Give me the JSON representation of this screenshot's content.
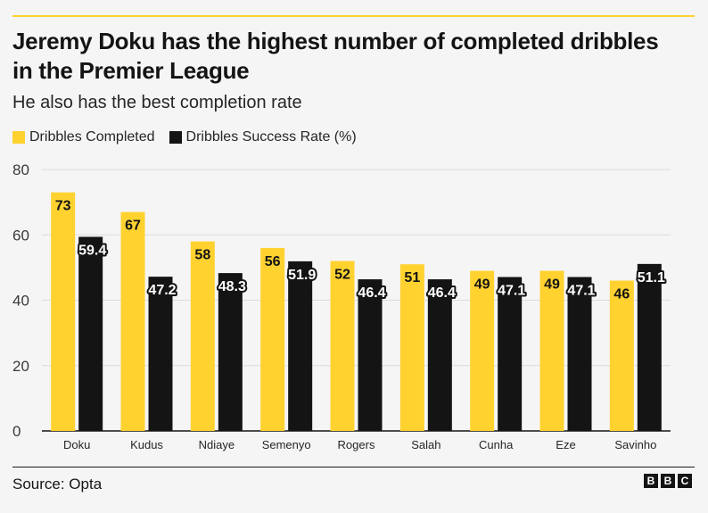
{
  "header": {
    "title": "Jeremy Doku has the highest number of completed dribbles in the Premier League",
    "subtitle": "He also has the best completion rate"
  },
  "legend": [
    {
      "label": "Dribbles Completed",
      "color": "#ffd230"
    },
    {
      "label": "Dribbles Success Rate (%)",
      "color": "#141414"
    }
  ],
  "footer": {
    "source": "Source: Opta",
    "logo_letters": [
      "B",
      "B",
      "C"
    ]
  },
  "chart_data": {
    "type": "bar",
    "title": "Jeremy Doku has the highest number of completed dribbles in the Premier League",
    "subtitle": "He also has the best completion rate",
    "categories": [
      "Doku",
      "Kudus",
      "Ndiaye",
      "Semenyo",
      "Rogers",
      "Salah",
      "Cunha",
      "Eze",
      "Savinho"
    ],
    "series": [
      {
        "name": "Dribbles Completed",
        "color": "#ffd230",
        "values": [
          73,
          67,
          58,
          56,
          52,
          51,
          49,
          49,
          46
        ],
        "labels": [
          "73",
          "67",
          "58",
          "56",
          "52",
          "51",
          "49",
          "49",
          "46"
        ]
      },
      {
        "name": "Dribbles Success Rate (%)",
        "color": "#141414",
        "values": [
          59.4,
          47.2,
          48.3,
          51.9,
          46.4,
          46.4,
          47.1,
          47.1,
          51.1
        ],
        "labels": [
          "59.4",
          "47.2",
          "48.3",
          "51.9",
          "46.4",
          "46.4",
          "47.1",
          "47.1",
          "51.1"
        ]
      }
    ],
    "ylim": [
      0,
      80
    ],
    "yticks": [
      0,
      20,
      40,
      60,
      80
    ],
    "ytick_labels": [
      "0",
      "20",
      "40",
      "60",
      "80"
    ],
    "grid": true,
    "legend_position": "top-left",
    "xlabel": "",
    "ylabel": ""
  }
}
